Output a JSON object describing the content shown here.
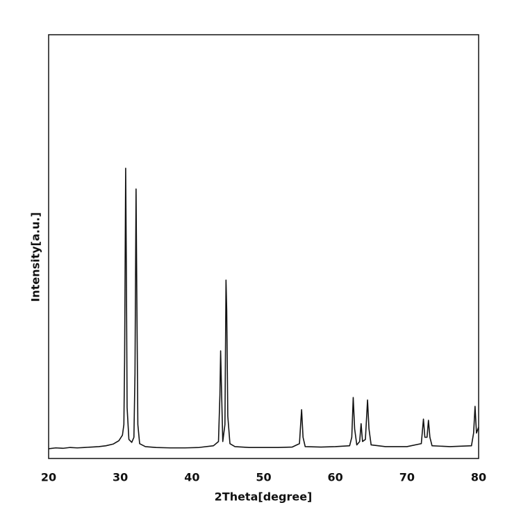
{
  "chart_data": {
    "type": "line",
    "xlabel": "2Theta[degree]",
    "ylabel": "Intensity[a.u.]",
    "xlim": [
      20,
      80
    ],
    "xticks": [
      20,
      30,
      40,
      50,
      60,
      70,
      80
    ],
    "ylim": [
      0,
      100
    ],
    "color": "#111111",
    "x": [
      20,
      21,
      22,
      23,
      24,
      25,
      26,
      27,
      28,
      29,
      29.8,
      30.3,
      30.5,
      30.6,
      30.75,
      30.85,
      30.95,
      31.2,
      31.6,
      31.9,
      32.05,
      32.2,
      32.3,
      32.45,
      32.7,
      33.5,
      35,
      37,
      39,
      41,
      43,
      43.7,
      43.9,
      44.0,
      44.1,
      44.3,
      44.6,
      44.75,
      44.85,
      45.0,
      45.3,
      46,
      48,
      50,
      52,
      54,
      55.0,
      55.2,
      55.3,
      55.5,
      55.8,
      58,
      60,
      62,
      62.3,
      62.5,
      62.7,
      63.0,
      63.4,
      63.6,
      63.8,
      64.2,
      64.5,
      64.7,
      65.0,
      67,
      70,
      72.0,
      72.3,
      72.5,
      72.8,
      73.0,
      73.2,
      73.5,
      76,
      79,
      79.3,
      79.5,
      79.7,
      80
    ],
    "values": [
      2.3,
      2.5,
      2.4,
      2.6,
      2.5,
      2.6,
      2.7,
      2.8,
      3.0,
      3.4,
      4.2,
      5.5,
      8,
      23,
      68.5,
      44,
      12,
      4.5,
      3.8,
      5,
      20,
      63.6,
      40,
      8,
      3.5,
      2.8,
      2.6,
      2.5,
      2.5,
      2.6,
      3.0,
      4,
      15,
      25.4,
      18,
      4,
      8,
      42.1,
      35,
      10,
      3.5,
      2.8,
      2.6,
      2.6,
      2.6,
      2.7,
      3.5,
      9,
      11.5,
      5,
      2.8,
      2.7,
      2.8,
      3.0,
      5,
      14.4,
      7,
      3.2,
      4,
      8.2,
      4,
      4.5,
      13.8,
      7,
      3.2,
      2.8,
      2.8,
      3.5,
      9.3,
      5,
      5,
      9.0,
      5,
      3,
      2.8,
      3,
      6,
      12.3,
      6,
      7.4
    ]
  }
}
